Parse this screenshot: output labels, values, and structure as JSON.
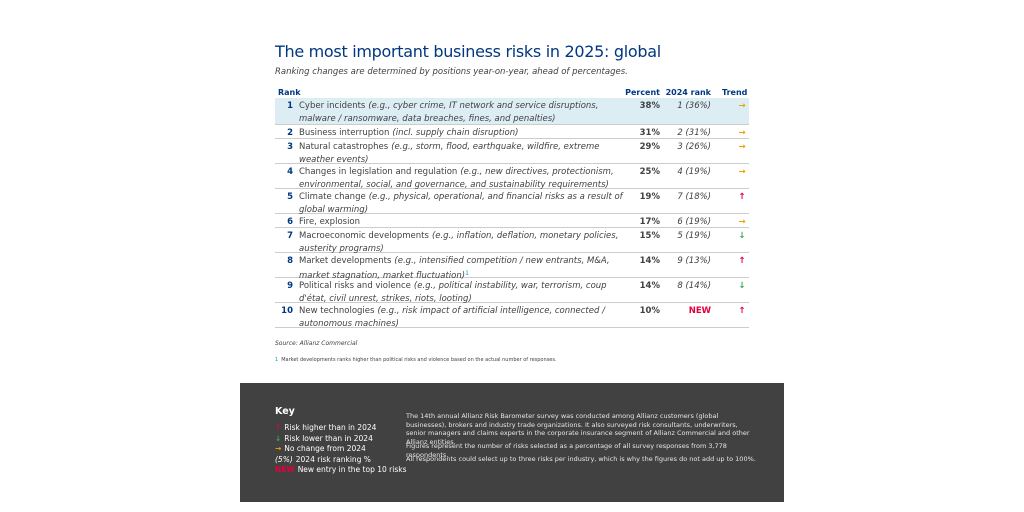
{
  "header": {
    "title": "The most important business risks in 2025: global",
    "subtitle": "Ranking changes are determined by positions year-on-year, ahead of percentages."
  },
  "table": {
    "columns": [
      "Rank",
      "Percent",
      "2024 rank",
      "Trend"
    ],
    "rows": [
      {
        "rank": "1",
        "name": "Cyber incidents",
        "detail": "(e.g., cyber crime, IT network and service disruptions, malware / ransomware, data breaches, fines, and penalties)",
        "percent": "38%",
        "prev": "1 (36%)",
        "trend": "→"
      },
      {
        "rank": "2",
        "name": "Business interruption",
        "detail": "(incl. supply chain disruption)",
        "percent": "31%",
        "prev": "2 (31%)",
        "trend": "→"
      },
      {
        "rank": "3",
        "name": "Natural catastrophes",
        "detail": "(e.g., storm, flood, earthquake, wildfire, extreme weather events)",
        "percent": "29%",
        "prev": "3 (26%)",
        "trend": "→"
      },
      {
        "rank": "4",
        "name": "Changes in legislation and regulation",
        "detail": "(e.g., new directives, protectionism, environmental, social, and governance, and sustainability requirements)",
        "percent": "25%",
        "prev": "4 (19%)",
        "trend": "→"
      },
      {
        "rank": "5",
        "name": "Climate change",
        "detail": "(e.g., physical, operational, and financial risks as a result of global warming)",
        "percent": "19%",
        "prev": "7 (18%)",
        "trend": "↑"
      },
      {
        "rank": "6",
        "name": "Fire, explosion",
        "detail": "",
        "percent": "17%",
        "prev": "6 (19%)",
        "trend": "→"
      },
      {
        "rank": "7",
        "name": "Macroeconomic developments",
        "detail": "(e.g., inflation, deflation, monetary policies, austerity programs)",
        "percent": "15%",
        "prev": "5 (19%)",
        "trend": "↓"
      },
      {
        "rank": "8",
        "name": "Market developments",
        "detail": "(e.g., intensified competition / new entrants, M&A, market stagnation, market fluctuation)",
        "footnote_ref": "1",
        "percent": "14%",
        "prev": "9 (13%)",
        "trend": "↑"
      },
      {
        "rank": "9",
        "name": "Political risks and violence",
        "detail": "(e.g., political instability, war, terrorism, coup d'état, civil unrest, strikes, riots, looting)",
        "percent": "14%",
        "prev": "8 (14%)",
        "trend": "↓"
      },
      {
        "rank": "10",
        "name": "New technologies",
        "detail": "(e.g., risk impact of artificial intelligence, connected / autonomous machines)",
        "percent": "10%",
        "prev": "NEW",
        "trend": "↑"
      }
    ]
  },
  "source": "Source: Allianz Commercial",
  "footnote": {
    "mark": "1",
    "text": "Market developments ranks higher than political risks and violence based on the actual number of responses."
  },
  "key": {
    "title": "Key",
    "items": [
      {
        "symbol": "↑",
        "text": "Risk higher than in 2024"
      },
      {
        "symbol": "↓",
        "text": "Risk lower than in 2024"
      },
      {
        "symbol": "→",
        "text": "No change from 2024"
      },
      {
        "symbol": "(5%)",
        "text": "2024 risk ranking %"
      },
      {
        "symbol": "NEW",
        "text": "New entry in the top 10 risks"
      }
    ]
  },
  "notes": [
    "The 14th annual Allianz Risk Barometer survey was conducted among Allianz customers (global businesses), brokers and industry trade organizations. It also surveyed risk consultants, underwriters, senior managers and claims experts in the corporate insurance segment of Allianz Commercial and other Allianz entities.",
    "Figures represent the number of risks selected as a percentage of all survey responses from 3,778 respondents.",
    "All respondents could select up to three risks per industry, which is why the figures do not add up to 100%."
  ]
}
